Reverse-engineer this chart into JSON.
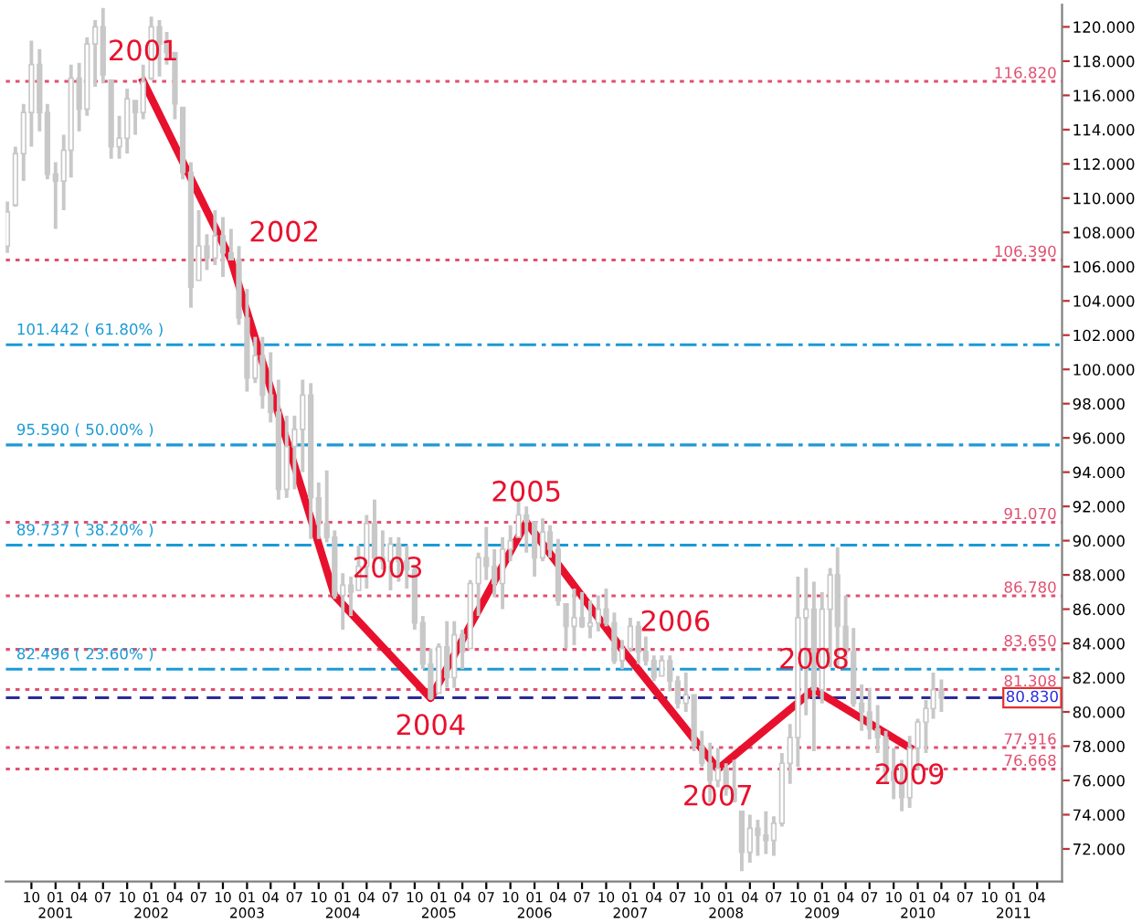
{
  "chart_data": {
    "type": "candlestick",
    "color": "#c8c8c8",
    "x": [
      "2000-07",
      "2000-08",
      "2000-09",
      "2000-10",
      "2000-11",
      "2000-12",
      "2001-01",
      "2001-02",
      "2001-03",
      "2001-04",
      "2001-05",
      "2001-06",
      "2001-07",
      "2001-08",
      "2001-09",
      "2001-10",
      "2001-11",
      "2001-12",
      "2002-01",
      "2002-02",
      "2002-03",
      "2002-04",
      "2002-05",
      "2002-06",
      "2002-07",
      "2002-08",
      "2002-09",
      "2002-10",
      "2002-11",
      "2002-12",
      "2003-01",
      "2003-02",
      "2003-03",
      "2003-04",
      "2003-05",
      "2003-06",
      "2003-07",
      "2003-08",
      "2003-09",
      "2003-10",
      "2003-11",
      "2003-12",
      "2004-01",
      "2004-02",
      "2004-03",
      "2004-04",
      "2004-05",
      "2004-06",
      "2004-07",
      "2004-08",
      "2004-09",
      "2004-10",
      "2004-11",
      "2004-12",
      "2005-01",
      "2005-02",
      "2005-03",
      "2005-04",
      "2005-05",
      "2005-06",
      "2005-07",
      "2005-08",
      "2005-09",
      "2005-10",
      "2005-11",
      "2005-12",
      "2006-01",
      "2006-02",
      "2006-03",
      "2006-04",
      "2006-05",
      "2006-06",
      "2006-07",
      "2006-08",
      "2006-09",
      "2006-10",
      "2006-11",
      "2006-12",
      "2007-01",
      "2007-02",
      "2007-03",
      "2007-04",
      "2007-05",
      "2007-06",
      "2007-07",
      "2007-08",
      "2007-09",
      "2007-10",
      "2007-11",
      "2007-12",
      "2008-01",
      "2008-02",
      "2008-03",
      "2008-04",
      "2008-05",
      "2008-06",
      "2008-07",
      "2008-08",
      "2008-09",
      "2008-10",
      "2008-11",
      "2008-12",
      "2009-01",
      "2009-02",
      "2009-03",
      "2009-04",
      "2009-05",
      "2009-06",
      "2009-07",
      "2009-08",
      "2009-09",
      "2009-10",
      "2009-11",
      "2009-12",
      "2010-01",
      "2010-02",
      "2010-03",
      "2010-04"
    ],
    "ohlc": [
      [
        107.2,
        109.8,
        106.8,
        109.2
      ],
      [
        109.6,
        113.0,
        109.5,
        112.6
      ],
      [
        112.6,
        115.5,
        111.0,
        115.0
      ],
      [
        115.0,
        119.2,
        113.0,
        117.8
      ],
      [
        117.8,
        118.7,
        113.9,
        115.0
      ],
      [
        115.0,
        115.5,
        111.1,
        111.4
      ],
      [
        111.4,
        112.1,
        108.2,
        111.0
      ],
      [
        111.0,
        113.7,
        109.3,
        112.8
      ],
      [
        112.8,
        117.8,
        111.2,
        117.0
      ],
      [
        117.0,
        117.9,
        113.9,
        115.2
      ],
      [
        115.2,
        119.4,
        114.8,
        119.0
      ],
      [
        119.0,
        120.4,
        116.5,
        120.0
      ],
      [
        120.0,
        121.1,
        116.7,
        117.2
      ],
      [
        116.9,
        116.9,
        112.3,
        113.0
      ],
      [
        113.0,
        114.8,
        112.3,
        113.5
      ],
      [
        113.5,
        116.4,
        112.6,
        115.8
      ],
      [
        115.7,
        115.7,
        113.7,
        115.0
      ],
      [
        115.0,
        117.8,
        114.6,
        116.8
      ],
      [
        117.0,
        120.6,
        116.9,
        120.0
      ],
      [
        120.0,
        120.4,
        117.1,
        119.0
      ],
      [
        119.0,
        119.7,
        117.8,
        118.5
      ],
      [
        118.5,
        118.5,
        114.6,
        115.5
      ],
      [
        115.3,
        115.3,
        111.1,
        111.5
      ],
      [
        111.5,
        112.1,
        103.6,
        104.8
      ],
      [
        105.2,
        109.3,
        105.2,
        107.2
      ],
      [
        107.2,
        107.9,
        105.8,
        106.5
      ],
      [
        106.5,
        109.3,
        106.1,
        107.8
      ],
      [
        107.8,
        108.9,
        105.4,
        106.8
      ],
      [
        106.8,
        108.2,
        106.4,
        106.4
      ],
      [
        106.4,
        107.2,
        102.6,
        103.0
      ],
      [
        103.0,
        104.7,
        98.7,
        99.5
      ],
      [
        99.5,
        101.9,
        99.2,
        100.8
      ],
      [
        100.8,
        101.9,
        97.7,
        98.5
      ],
      [
        98.5,
        101.0,
        96.9,
        97.5
      ],
      [
        97.5,
        99.4,
        92.4,
        93.0
      ],
      [
        93.0,
        97.3,
        92.5,
        95.5
      ],
      [
        95.5,
        97.3,
        93.0,
        96.5
      ],
      [
        96.5,
        99.4,
        94.0,
        98.5
      ],
      [
        98.5,
        99.2,
        90.1,
        92.5
      ],
      [
        92.5,
        93.4,
        90.1,
        91.0
      ],
      [
        91.0,
        94.1,
        89.9,
        90.2
      ],
      [
        90.2,
        90.6,
        86.6,
        86.8
      ],
      [
        86.8,
        88.1,
        84.8,
        87.4
      ],
      [
        87.4,
        87.9,
        85.6,
        87.0
      ],
      [
        87.1,
        89.7,
        87.1,
        88.5
      ],
      [
        88.5,
        91.5,
        87.2,
        91.0
      ],
      [
        91.0,
        92.4,
        88.8,
        89.0
      ],
      [
        89.0,
        90.6,
        88.3,
        88.8
      ],
      [
        88.8,
        90.2,
        87.1,
        89.8
      ],
      [
        89.8,
        90.2,
        87.6,
        88.8
      ],
      [
        88.8,
        89.7,
        87.2,
        88.3
      ],
      [
        88.3,
        88.6,
        84.8,
        85.2
      ],
      [
        85.2,
        85.6,
        82.5,
        82.8
      ],
      [
        82.8,
        83.7,
        80.7,
        80.8
      ],
      [
        81.1,
        84.0,
        81.1,
        83.8
      ],
      [
        83.8,
        85.3,
        81.4,
        82.0
      ],
      [
        82.0,
        85.3,
        81.4,
        84.5
      ],
      [
        84.5,
        84.8,
        82.5,
        83.5
      ],
      [
        83.7,
        87.7,
        83.7,
        87.5
      ],
      [
        87.5,
        89.3,
        85.6,
        89.0
      ],
      [
        89.0,
        90.8,
        87.7,
        88.5
      ],
      [
        88.5,
        89.5,
        86.7,
        87.5
      ],
      [
        87.5,
        90.2,
        86.0,
        89.5
      ],
      [
        89.5,
        90.9,
        88.8,
        90.0
      ],
      [
        90.2,
        92.5,
        90.2,
        91.5
      ],
      [
        91.5,
        92.0,
        89.3,
        91.1
      ],
      [
        91.1,
        91.1,
        87.9,
        89.0
      ],
      [
        89.0,
        91.3,
        88.8,
        90.5
      ],
      [
        90.5,
        90.9,
        89.0,
        89.5
      ],
      [
        89.5,
        90.1,
        86.2,
        86.5
      ],
      [
        86.3,
        86.3,
        83.7,
        85.0
      ],
      [
        85.0,
        87.2,
        83.9,
        85.5
      ],
      [
        85.5,
        87.0,
        84.9,
        85.0
      ],
      [
        85.0,
        86.5,
        84.3,
        85.2
      ],
      [
        85.2,
        86.8,
        84.7,
        86.0
      ],
      [
        86.0,
        87.2,
        85.0,
        85.2
      ],
      [
        85.2,
        85.8,
        82.8,
        83.0
      ],
      [
        83.0,
        84.2,
        82.5,
        83.7
      ],
      [
        83.7,
        85.5,
        83.5,
        85.0
      ],
      [
        85.0,
        85.3,
        82.8,
        83.5
      ],
      [
        83.5,
        84.4,
        82.7,
        83.0
      ],
      [
        83.0,
        83.3,
        81.8,
        82.0
      ],
      [
        82.1,
        83.3,
        82.1,
        83.0
      ],
      [
        83.0,
        83.3,
        81.2,
        81.8
      ],
      [
        81.8,
        82.1,
        80.2,
        80.5
      ],
      [
        80.5,
        82.3,
        80.0,
        81.0
      ],
      [
        81.0,
        81.0,
        77.7,
        78.0
      ],
      [
        78.0,
        78.9,
        76.8,
        77.0
      ],
      [
        77.0,
        78.2,
        74.7,
        76.0
      ],
      [
        76.0,
        77.9,
        75.6,
        76.7
      ],
      [
        76.7,
        77.0,
        75.1,
        75.5
      ],
      [
        75.5,
        77.2,
        74.7,
        74.8
      ],
      [
        74.2,
        74.2,
        70.7,
        71.8
      ],
      [
        71.8,
        74.0,
        71.2,
        73.2
      ],
      [
        73.2,
        73.7,
        71.6,
        72.8
      ],
      [
        72.8,
        74.2,
        71.7,
        72.5
      ],
      [
        72.5,
        73.9,
        71.6,
        73.5
      ],
      [
        73.5,
        77.6,
        73.3,
        77.0
      ],
      [
        77.0,
        79.3,
        75.8,
        78.5
      ],
      [
        78.5,
        87.9,
        76.8,
        85.5
      ],
      [
        85.5,
        88.4,
        79.8,
        86.0
      ],
      [
        86.0,
        87.6,
        77.7,
        81.3
      ],
      [
        81.3,
        87.0,
        80.5,
        86.0
      ],
      [
        86.0,
        88.4,
        82.6,
        88.0
      ],
      [
        88.0,
        89.6,
        82.6,
        85.0
      ],
      [
        85.0,
        86.8,
        82.6,
        83.5
      ],
      [
        83.5,
        84.9,
        80.3,
        80.5
      ],
      [
        80.5,
        81.6,
        78.9,
        80.0
      ],
      [
        80.0,
        81.4,
        78.4,
        79.0
      ],
      [
        79.0,
        80.4,
        77.6,
        78.5
      ],
      [
        78.5,
        78.9,
        75.8,
        76.5
      ],
      [
        76.5,
        77.9,
        74.9,
        76.0
      ],
      [
        76.0,
        77.2,
        74.2,
        75.0
      ],
      [
        75.0,
        78.6,
        74.4,
        77.9
      ],
      [
        77.9,
        79.6,
        76.6,
        79.4
      ],
      [
        79.4,
        80.7,
        77.6,
        80.2
      ],
      [
        80.2,
        82.3,
        79.6,
        81.3
      ],
      [
        81.3,
        81.9,
        80.0,
        80.8
      ]
    ],
    "series": [
      {
        "type": "line",
        "color": "#e8112d",
        "x": [
          "2001-12",
          "2002-11",
          "2003-12",
          "2004-12",
          "2005-12",
          "2006-12",
          "2007-12",
          "2008-12",
          "2009-12"
        ],
        "values": [
          116.82,
          106.39,
          86.78,
          80.8,
          91.07,
          83.65,
          76.668,
          81.308,
          77.916
        ]
      }
    ],
    "annotations": [
      {
        "text": "2001",
        "x": "2001-12",
        "y": 116.82
      },
      {
        "text": "2002",
        "x": "2002-11",
        "y": 106.39
      },
      {
        "text": "2003",
        "x": "2003-12",
        "y": 86.78
      },
      {
        "text": "2004",
        "x": "2004-12",
        "y": 80.8
      },
      {
        "text": "2005",
        "x": "2005-12",
        "y": 91.07
      },
      {
        "text": "2006",
        "x": "2006-12",
        "y": 83.65
      },
      {
        "text": "2007",
        "x": "2007-12",
        "y": 76.668
      },
      {
        "text": "2008",
        "x": "2008-12",
        "y": 81.308
      },
      {
        "text": "2009",
        "x": "2009-12",
        "y": 77.916
      }
    ],
    "ref_lines": [
      {
        "axis": "y",
        "value": 116.82,
        "label": "116.820",
        "color": "#e05070",
        "line_style": "dotted"
      },
      {
        "axis": "y",
        "value": 106.39,
        "label": "106.390",
        "color": "#e05070",
        "line_style": "dotted"
      },
      {
        "axis": "y",
        "value": 91.07,
        "label": "91.070",
        "color": "#e05070",
        "line_style": "dotted"
      },
      {
        "axis": "y",
        "value": 86.78,
        "label": "86.780",
        "color": "#e05070",
        "line_style": "dotted"
      },
      {
        "axis": "y",
        "value": 83.65,
        "label": "83.650",
        "color": "#e05070",
        "line_style": "dotted"
      },
      {
        "axis": "y",
        "value": 81.308,
        "label": "81.308",
        "color": "#e05070",
        "line_style": "dotted"
      },
      {
        "axis": "y",
        "value": 77.916,
        "label": "77.916",
        "color": "#e05070",
        "line_style": "dotted"
      },
      {
        "axis": "y",
        "value": 76.668,
        "label": "76.668",
        "color": "#e05070",
        "line_style": "dotted"
      },
      {
        "axis": "y",
        "value": 101.442,
        "label": "101.442 ( 61.80% )",
        "color": "#1a9ad6",
        "line_style": "dashdot"
      },
      {
        "axis": "y",
        "value": 95.59,
        "label": "95.590 ( 50.00% )",
        "color": "#1a9ad6",
        "line_style": "dashdot"
      },
      {
        "axis": "y",
        "value": 89.737,
        "label": "89.737 ( 38.20% )",
        "color": "#1a9ad6",
        "line_style": "dashdot"
      },
      {
        "axis": "y",
        "value": 82.496,
        "label": "82.496 ( 23.60% )",
        "color": "#1a9ad6",
        "line_style": "dashdot"
      },
      {
        "axis": "y",
        "value": 80.83,
        "label": "80.830",
        "color": "#2a2a9a",
        "line_style": "dashed"
      }
    ],
    "xlim": [
      "2000-06-25",
      "2011-07-05"
    ],
    "xticks": [
      {
        "value": "2000-10",
        "label": "10"
      },
      {
        "value": "2001-01",
        "label": "01\n2001"
      },
      {
        "value": "2001-04",
        "label": "04"
      },
      {
        "value": "2001-07",
        "label": "07"
      },
      {
        "value": "2001-10",
        "label": "10"
      },
      {
        "value": "2002-01",
        "label": "01\n2002"
      },
      {
        "value": "2002-04",
        "label": "04"
      },
      {
        "value": "2002-07",
        "label": "07"
      },
      {
        "value": "2002-10",
        "label": "10"
      },
      {
        "value": "2003-01",
        "label": "01\n2003"
      },
      {
        "value": "2003-04",
        "label": "04"
      },
      {
        "value": "2003-07",
        "label": "07"
      },
      {
        "value": "2003-10",
        "label": "10"
      },
      {
        "value": "2004-01",
        "label": "01\n2004"
      },
      {
        "value": "2004-04",
        "label": "04"
      },
      {
        "value": "2004-07",
        "label": "07"
      },
      {
        "value": "2004-10",
        "label": "10"
      },
      {
        "value": "2005-01",
        "label": "01\n2005"
      },
      {
        "value": "2005-04",
        "label": "04"
      },
      {
        "value": "2005-07",
        "label": "07"
      },
      {
        "value": "2005-10",
        "label": "10"
      },
      {
        "value": "2006-01",
        "label": "01\n2006"
      },
      {
        "value": "2006-04",
        "label": "04"
      },
      {
        "value": "2006-07",
        "label": "07"
      },
      {
        "value": "2006-10",
        "label": "10"
      },
      {
        "value": "2007-01",
        "label": "01\n2007"
      },
      {
        "value": "2007-04",
        "label": "04"
      },
      {
        "value": "2007-07",
        "label": "07"
      },
      {
        "value": "2007-10",
        "label": "10"
      },
      {
        "value": "2008-01",
        "label": "01\n2008"
      },
      {
        "value": "2008-04",
        "label": "04"
      },
      {
        "value": "2008-07",
        "label": "07"
      },
      {
        "value": "2008-10",
        "label": "10"
      },
      {
        "value": "2009-01",
        "label": "01\n2009"
      },
      {
        "value": "2009-04",
        "label": "04"
      },
      {
        "value": "2009-07",
        "label": "07"
      },
      {
        "value": "2009-10",
        "label": "10"
      },
      {
        "value": "2010-01",
        "label": "01\n2010"
      },
      {
        "value": "2010-04",
        "label": "04"
      },
      {
        "value": "2010-07",
        "label": "07"
      },
      {
        "value": "2010-10",
        "label": "10"
      },
      {
        "value": "2011-01",
        "label": "01\n2011"
      },
      {
        "value": "2011-04",
        "label": "04"
      }
    ],
    "ylim": [
      70.1,
      121.3
    ],
    "yticks": [
      {
        "value": 72,
        "label": "72.000"
      },
      {
        "value": 74,
        "label": "74.000"
      },
      {
        "value": 76,
        "label": "76.000"
      },
      {
        "value": 78,
        "label": "78.000"
      },
      {
        "value": 80,
        "label": "80.000"
      },
      {
        "value": 82,
        "label": "82.000"
      },
      {
        "value": 84,
        "label": "84.000"
      },
      {
        "value": 86,
        "label": "86.000"
      },
      {
        "value": 88,
        "label": "88.000"
      },
      {
        "value": 90,
        "label": "90.000"
      },
      {
        "value": 92,
        "label": "92.000"
      },
      {
        "value": 94,
        "label": "94.000"
      },
      {
        "value": 96,
        "label": "96.000"
      },
      {
        "value": 98,
        "label": "98.000"
      },
      {
        "value": 100,
        "label": "100.000"
      },
      {
        "value": 102,
        "label": "102.000"
      },
      {
        "value": 104,
        "label": "104.000"
      },
      {
        "value": 106,
        "label": "106.000"
      },
      {
        "value": 108,
        "label": "108.000"
      },
      {
        "value": 110,
        "label": "110.000"
      },
      {
        "value": 112,
        "label": "112.000"
      },
      {
        "value": 114,
        "label": "114.000"
      },
      {
        "value": 116,
        "label": "116.000"
      },
      {
        "value": 118,
        "label": "118.000"
      },
      {
        "value": 120,
        "label": "120.000"
      }
    ],
    "grid": false,
    "legend": false
  }
}
